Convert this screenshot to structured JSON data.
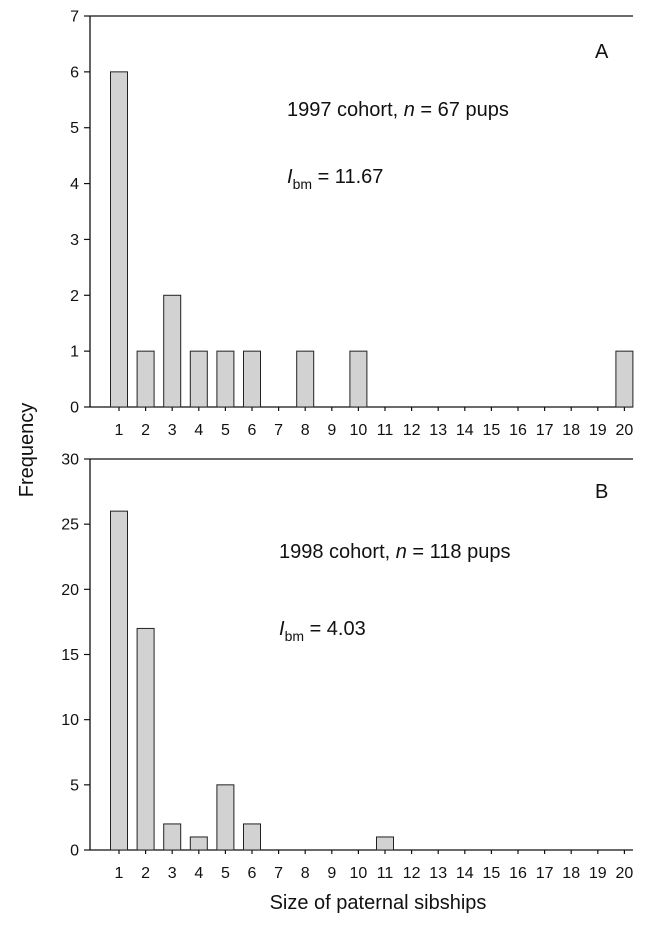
{
  "figure": {
    "ylabel": "Frequency",
    "xlabel": "Size of paternal sibships"
  },
  "panels": [
    {
      "letter": "A",
      "annotation": {
        "line1_pre": "1997 cohort, ",
        "italic_n": "n",
        "line1_post": " = 67 pups",
        "stat_main": "I",
        "stat_sub": "bm",
        "stat_value": " = 11.67"
      }
    },
    {
      "letter": "B",
      "annotation": {
        "line1_pre": "1998 cohort, ",
        "italic_n": "n",
        "line1_post": " = 118 pups",
        "stat_main": "I",
        "stat_sub": "bm",
        "stat_value": " = 4.03"
      }
    }
  ],
  "chart_data": [
    {
      "type": "bar",
      "title": "",
      "xlabel": "Size of paternal sibships",
      "ylabel": "Frequency",
      "categories": [
        "1",
        "2",
        "3",
        "4",
        "5",
        "6",
        "7",
        "8",
        "9",
        "10",
        "11",
        "12",
        "13",
        "14",
        "15",
        "16",
        "17",
        "18",
        "19",
        "20"
      ],
      "values": [
        6,
        1,
        2,
        1,
        1,
        1,
        0,
        1,
        0,
        1,
        0,
        0,
        0,
        0,
        0,
        0,
        0,
        0,
        0,
        1
      ],
      "ylim": [
        0,
        7
      ],
      "yticks": [
        0,
        1,
        2,
        3,
        4,
        5,
        6,
        7
      ],
      "grid": false
    },
    {
      "type": "bar",
      "title": "",
      "xlabel": "Size of paternal sibships",
      "ylabel": "Frequency",
      "categories": [
        "1",
        "2",
        "3",
        "4",
        "5",
        "6",
        "7",
        "8",
        "9",
        "10",
        "11",
        "12",
        "13",
        "14",
        "15",
        "16",
        "17",
        "18",
        "19",
        "20"
      ],
      "values": [
        26,
        17,
        2,
        1,
        5,
        2,
        0,
        0,
        0,
        0,
        1,
        0,
        0,
        0,
        0,
        0,
        0,
        0,
        0,
        0
      ],
      "ylim": [
        0,
        30
      ],
      "yticks": [
        0,
        5,
        10,
        15,
        20,
        25,
        30
      ],
      "grid": false
    }
  ]
}
